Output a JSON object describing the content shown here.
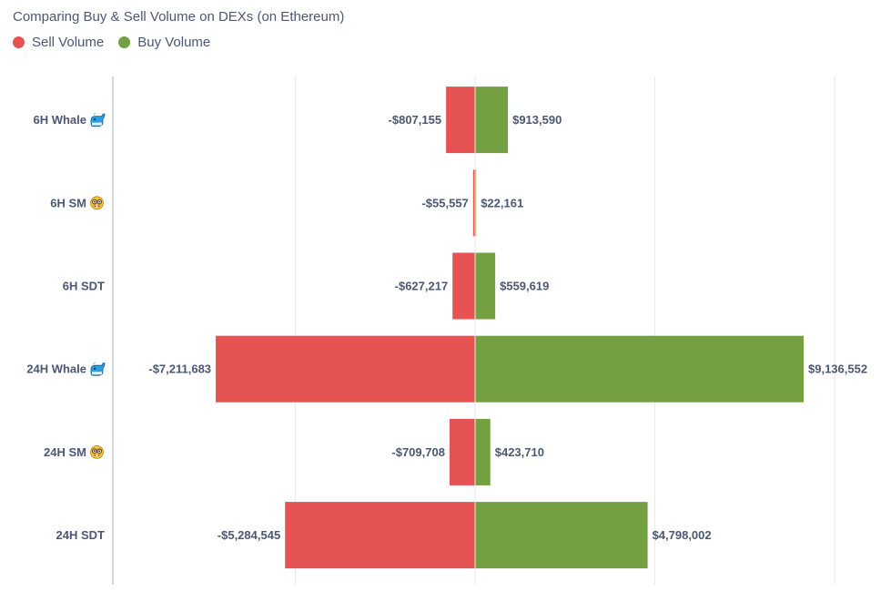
{
  "colors": {
    "sell": "#e55353",
    "buy": "#74a042",
    "grid": "#e8eaed",
    "axis": "#aab0b8",
    "text": "#4c5773"
  },
  "chart_data": {
    "type": "bar",
    "orientation": "horizontal-diverging",
    "title": "Comparing Buy & Sell Volume on DEXs (on Ethereum)",
    "legend_position": "top-left",
    "grid": true,
    "xlim": [
      -10000000,
      10000000
    ],
    "categories": [
      {
        "label": "6H Whale",
        "icon": "whale-icon"
      },
      {
        "label": "6H SM",
        "icon": "nerd-face-icon"
      },
      {
        "label": "6H SDT",
        "icon": ""
      },
      {
        "label": "24H Whale",
        "icon": "whale-icon"
      },
      {
        "label": "24H SM",
        "icon": "nerd-face-icon"
      },
      {
        "label": "24H SDT",
        "icon": ""
      }
    ],
    "series": [
      {
        "name": "Sell Volume",
        "values": [
          -807155,
          -55557,
          -627217,
          -7211683,
          -709708,
          -5284545
        ],
        "labels": [
          "-$807,155",
          "-$55,557",
          "-$627,217",
          "-$7,211,683",
          "-$709,708",
          "-$5,284,545"
        ]
      },
      {
        "name": "Buy Volume",
        "values": [
          913590,
          22161,
          559619,
          9136552,
          423710,
          4798002
        ],
        "labels": [
          "$913,590",
          "$22,161",
          "$559,619",
          "$9,136,552",
          "$423,710",
          "$4,798,002"
        ]
      }
    ]
  }
}
